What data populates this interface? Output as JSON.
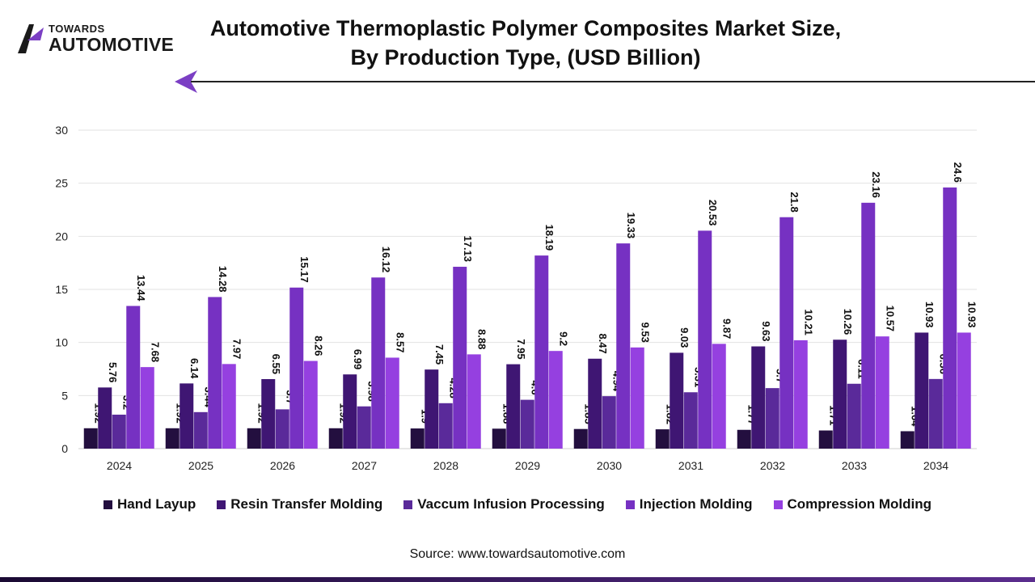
{
  "brand": {
    "line1": "TOWARDS",
    "line2": "AUTOMOTIVE"
  },
  "title_line1": "Automotive Thermoplastic Polymer Composites Market Size,",
  "title_line2": "By Production Type, (USD Billion)",
  "source": "Source: www.towardsautomotive.com",
  "colors": {
    "accent": "#7b3fc4",
    "bottom_band_start": "#1a0a33",
    "bottom_band_end": "#5b2d8e",
    "grid": "#e2e2e2"
  },
  "chart_data": {
    "type": "bar",
    "categories": [
      "2024",
      "2025",
      "2026",
      "2027",
      "2028",
      "2029",
      "2030",
      "2031",
      "2032",
      "2033",
      "2034"
    ],
    "series": [
      {
        "name": "Hand Layup",
        "color": "#230f3f",
        "values": [
          1.92,
          1.92,
          1.92,
          1.92,
          1.9,
          1.88,
          1.85,
          1.82,
          1.77,
          1.71,
          1.64
        ]
      },
      {
        "name": "Resin Transfer Molding",
        "color": "#3f1673",
        "values": [
          5.76,
          6.14,
          6.55,
          6.99,
          7.45,
          7.95,
          8.47,
          9.03,
          9.63,
          10.26,
          10.93
        ]
      },
      {
        "name": "Vaccum Infusion Processing",
        "color": "#5a2a9a",
        "values": [
          3.2,
          3.44,
          3.7,
          3.98,
          4.28,
          4.6,
          4.94,
          5.31,
          5.7,
          6.11,
          6.56
        ]
      },
      {
        "name": "Injection Molding",
        "color": "#7631c2",
        "values": [
          13.44,
          14.28,
          15.17,
          16.12,
          17.13,
          18.19,
          19.33,
          20.53,
          21.8,
          23.16,
          24.6
        ]
      },
      {
        "name": "Compression Molding",
        "color": "#9540e0",
        "values": [
          7.68,
          7.97,
          8.26,
          8.57,
          8.88,
          9.2,
          9.53,
          9.87,
          10.21,
          10.57,
          10.93
        ]
      }
    ],
    "ylim": [
      0,
      30
    ],
    "yticks": [
      0,
      5,
      10,
      15,
      20,
      25,
      30
    ],
    "grid": true,
    "legend_position": "bottom",
    "data_labels": "vertical above bars"
  }
}
